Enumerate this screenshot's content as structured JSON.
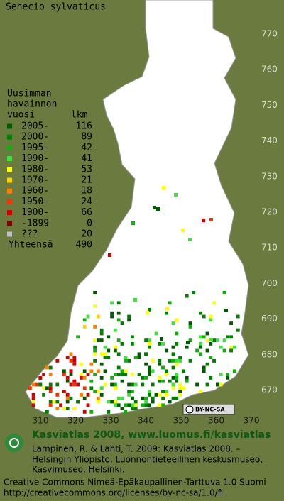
{
  "title": "Senecio sylvaticus",
  "legend": {
    "header": [
      "Uusimman",
      "havainnon",
      "vuosi"
    ],
    "count_header": "lkm",
    "rows": [
      {
        "label": "2005-",
        "count": 116,
        "color": "#005a00"
      },
      {
        "label": "2000-",
        "count": 89,
        "color": "#008000"
      },
      {
        "label": "1995-",
        "count": 42,
        "color": "#10b010"
      },
      {
        "label": "1990-",
        "count": 41,
        "color": "#40e040"
      },
      {
        "label": "1980-",
        "count": 53,
        "color": "#ffff00"
      },
      {
        "label": "1970-",
        "count": 21,
        "color": "#ffd000"
      },
      {
        "label": "1960-",
        "count": 18,
        "color": "#ff8000"
      },
      {
        "label": "1950-",
        "count": 24,
        "color": "#ff3000"
      },
      {
        "label": "1900-",
        "count": 66,
        "color": "#d00000"
      },
      {
        "label": "-1899",
        "count": 0,
        "color": "#800000"
      },
      {
        "label": "???",
        "count": 20,
        "color": "#c0c0c0"
      }
    ],
    "total_label": "Yhteensä",
    "total": 490
  },
  "map": {
    "yticks": [
      770,
      760,
      750,
      740,
      730,
      720,
      710,
      700,
      690,
      680,
      670
    ],
    "xticks": [
      310,
      320,
      330,
      340,
      350,
      360,
      370
    ]
  },
  "badge": "BY-NC-SA",
  "footer": {
    "heading": "Kasviatlas 2008, www.luomus.fi/kasviatlas",
    "citation": [
      "Lampinen, R. & Lahti, T. 2009: Kasviatlas 2008. –",
      "Helsingin Yliopisto, Luonnontieteellinen keskusmuseo,",
      "Kasvimuseo, Helsinki."
    ],
    "license": [
      "Creative Commons Nimeä-Epäkaupallinen-Tarttuva 1.0 Suomi",
      "http://creativecommons.org/licenses/by-nc-sa/1.0/fi"
    ]
  }
}
